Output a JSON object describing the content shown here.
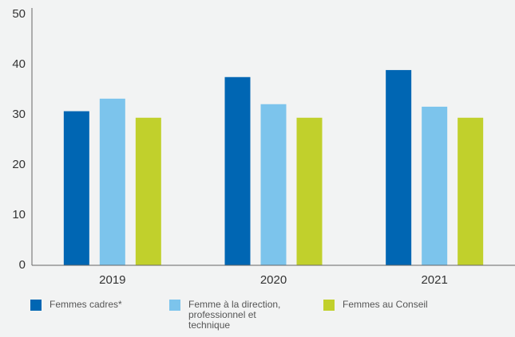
{
  "chart_data": {
    "type": "bar",
    "categories": [
      "2019",
      "2020",
      "2021"
    ],
    "series": [
      {
        "name": "Femmes cadres*",
        "color": "#0066b3",
        "values": [
          30.7,
          37.5,
          38.9
        ]
      },
      {
        "name": "Femme à la direction, professionnel et technique",
        "color": "#7cc4ec",
        "values": [
          33.2,
          32.1,
          31.6
        ]
      },
      {
        "name": "Femmes au Conseil",
        "color": "#c1d02c",
        "values": [
          29.4,
          29.4,
          29.4
        ]
      }
    ],
    "ylim": [
      0,
      50
    ],
    "yticks": [
      0,
      10,
      20,
      30,
      40,
      50
    ],
    "grid": false,
    "legend": "bottom"
  }
}
